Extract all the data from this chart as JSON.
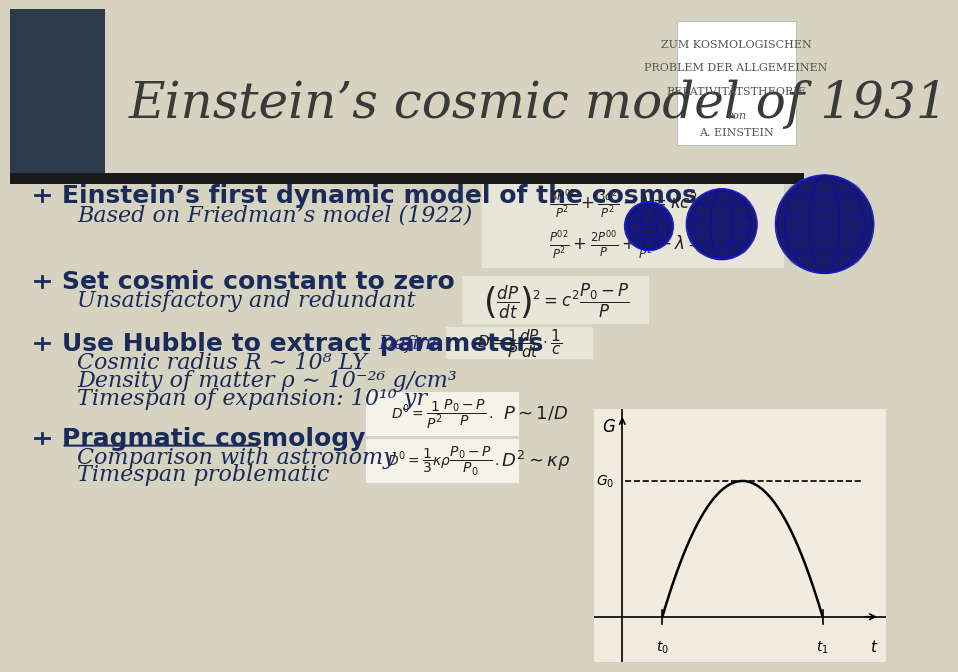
{
  "title": "Einstein’s cosmic model of 1931",
  "bg_color": "#d6d4c0",
  "header_stripe_color": "#2d3a4a",
  "title_color": "#3a3a3a",
  "title_fontsize": 36,
  "book_title_lines": [
    "ZUM KOSMOLOGISCHEN",
    "PROBLEM DER ALLGEMEINEN",
    "RELATIVITÄTSTHEORIE",
    "von",
    "A. EINSTEIN"
  ],
  "book_title_color": "#555555",
  "book_title_fontsize": 8,
  "separator_color": "#1a1a1a",
  "bullet_color": "#1a2a5a",
  "bullet1_bold": "Einstein’s first dynamic model of the cosmos",
  "bullet1_italic": "Based on Friedman’s model (1922)",
  "bullet2_bold": "Set cosmic constant to zero",
  "bullet2_italic": "Unsatisfactory and redundant",
  "bullet3_bold": "Use Hubble to extract parameters",
  "bullet3_italic1": "Cosmic radius R ∼ 10⁸ LY",
  "bullet3_italic2": "Density of matter ρ ∼ 10⁻²⁶ g/cm³",
  "bullet3_italic3": "Timespan of expansion: 10¹⁰ yr",
  "bullet4_bold_underline": "Pragmatic cosmology",
  "bullet4_italic1": "Comparison with astronomy",
  "bullet4_italic2": "Timespan problematic",
  "bullet_fontsize": 18,
  "italic_fontsize": 16,
  "eq_box_color": "#e8e6d8",
  "graph_bg_color": "#f0ede0"
}
